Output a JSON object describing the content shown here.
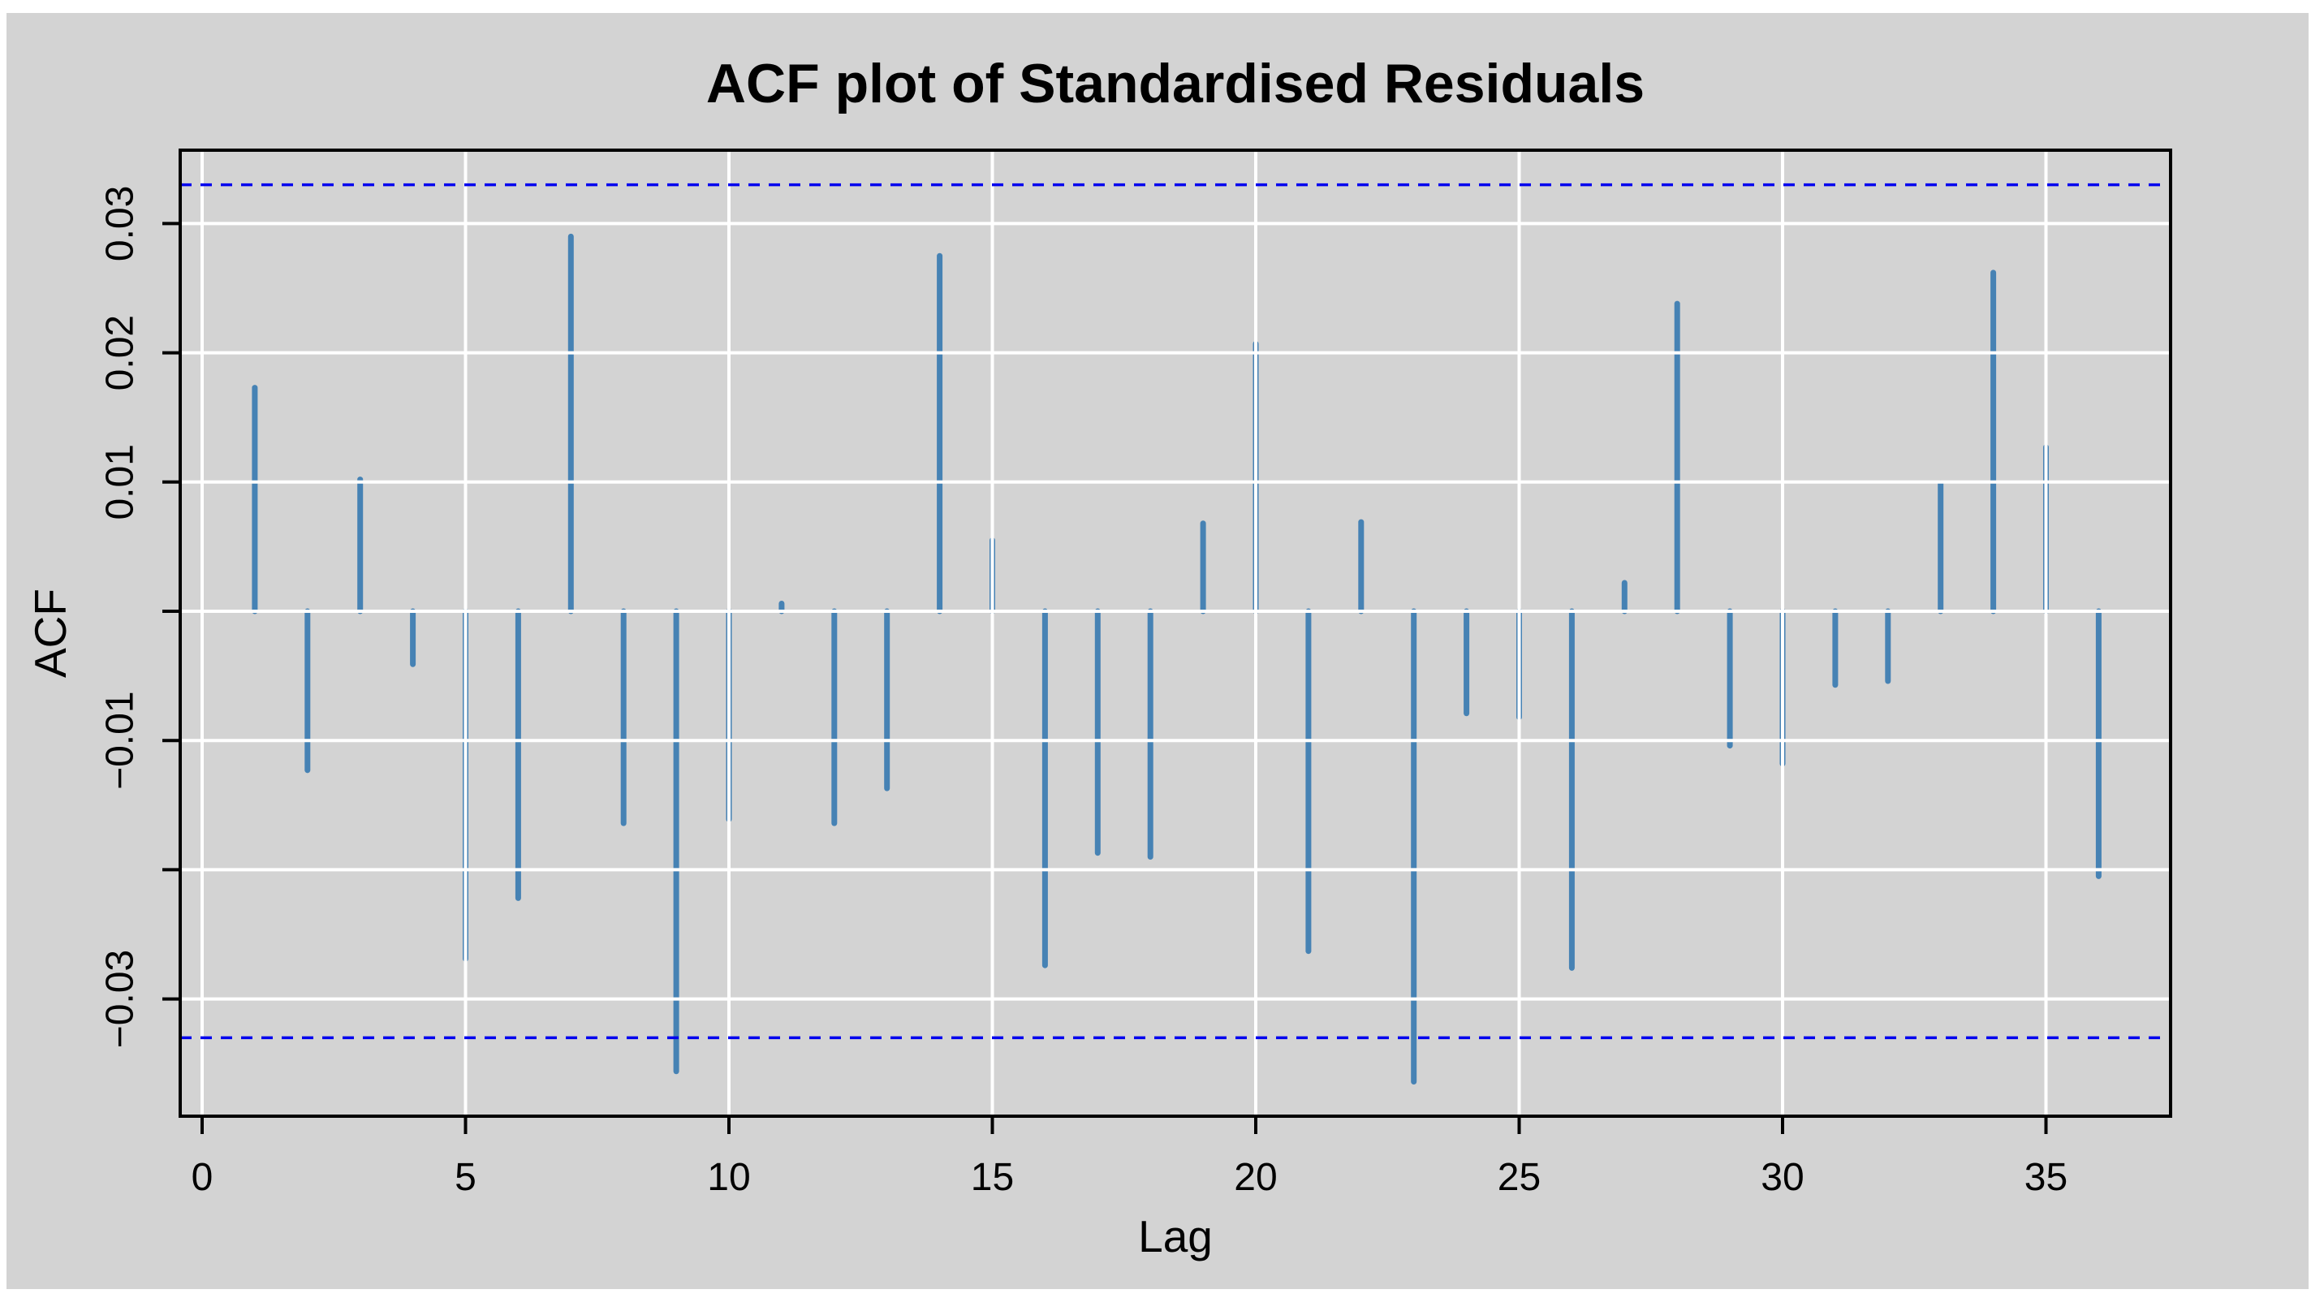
{
  "figure": {
    "title": "ACF plot of Standardised Residuals",
    "x_axis_label": "Lag",
    "y_axis_label": "ACF"
  },
  "chart_data": {
    "type": "bar",
    "title": "ACF plot of Standardised Residuals",
    "xlabel": "Lag",
    "ylabel": "ACF",
    "x": [
      1,
      2,
      3,
      4,
      5,
      6,
      7,
      8,
      9,
      10,
      11,
      12,
      13,
      14,
      15,
      16,
      17,
      18,
      19,
      20,
      21,
      22,
      23,
      24,
      25,
      26,
      27,
      28,
      29,
      30,
      31,
      32,
      33,
      34,
      35,
      36
    ],
    "values": [
      0.0173,
      -0.0123,
      0.0102,
      -0.0041,
      -0.0269,
      -0.0222,
      0.029,
      -0.0164,
      -0.0356,
      -0.0161,
      0.0006,
      -0.0164,
      -0.0137,
      0.0275,
      0.0055,
      -0.0274,
      -0.0187,
      -0.019,
      0.0068,
      0.0207,
      -0.0263,
      0.0069,
      -0.0364,
      -0.0079,
      -0.0082,
      -0.0276,
      0.0022,
      0.0238,
      -0.0104,
      -0.0118,
      -0.0057,
      -0.0054,
      0.0099,
      0.0262,
      0.0127,
      -0.0205
    ],
    "confidence_bounds": [
      -0.033,
      0.033
    ],
    "confidence_line_style": "dashed",
    "xlim": [
      -0.42,
      37.4
    ],
    "ylim": [
      -0.0382,
      0.0357
    ],
    "x_ticks": [
      0,
      5,
      10,
      15,
      20,
      25,
      30,
      35
    ],
    "y_ticks": [
      0.03,
      0.02,
      0.01,
      0,
      -0.01,
      -0.02,
      -0.03
    ],
    "y_tick_labels": [
      {
        "value": 0.03,
        "label": "0.03"
      },
      {
        "value": 0.02,
        "label": "0.02"
      },
      {
        "value": 0.01,
        "label": "0.01"
      },
      {
        "value": -0.01,
        "label": "−0.01"
      },
      {
        "value": -0.03,
        "label": "−0.03"
      }
    ],
    "grid": true,
    "legend": null,
    "colors": {
      "bar": "#4682B4",
      "confidence_line": "#0000EE",
      "gridline": "#FFFFFF",
      "plot_background": "#D3D3D3",
      "page_background": "#FFFFFF",
      "axis": "#000000"
    }
  }
}
